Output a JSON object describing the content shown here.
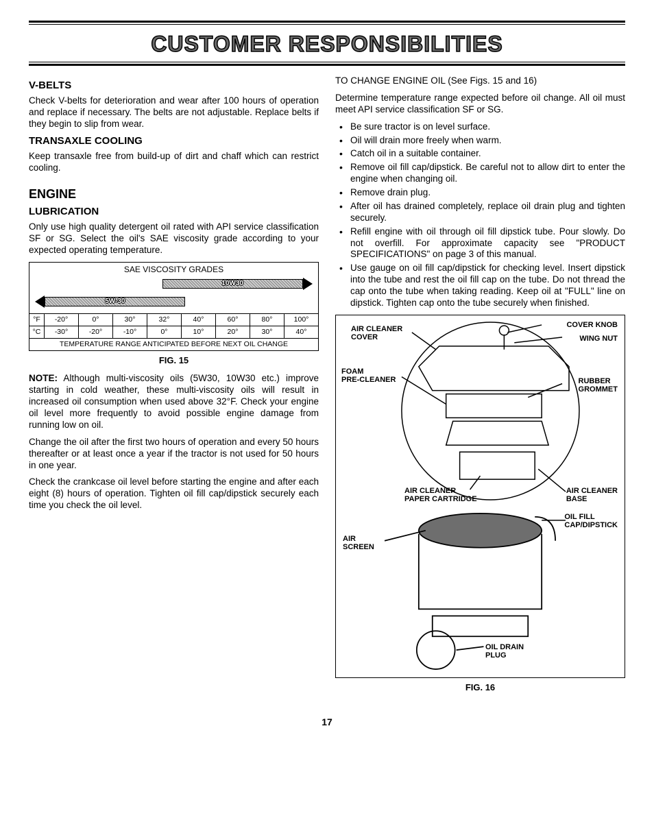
{
  "title": "CUSTOMER RESPONSIBILITIES",
  "left": {
    "vbelts": {
      "heading": "V-BELTS",
      "text": "Check V-belts for deterioration and wear after 100 hours of operation and replace if necessary. The belts are not adjustable. Replace belts if they begin to slip from wear."
    },
    "transaxle": {
      "heading": "TRANSAXLE COOLING",
      "text": "Keep transaxle free from build-up of dirt and chaff which can restrict cooling."
    },
    "engine": {
      "heading": "ENGINE"
    },
    "lubrication": {
      "heading": "LUBRICATION",
      "text": "Only use high quality detergent oil rated with API service classification SF or SG. Select the oil's SAE viscosity grade according to your expected operating temperature."
    },
    "sae": {
      "title": "SAE VISCOSITY GRADES",
      "band_top": {
        "label": "10W30",
        "left_pct": 46,
        "right_pct": 2
      },
      "band_bot": {
        "label": "5W-30",
        "left_pct": 2,
        "right_pct": 46
      },
      "f": {
        "unit": "°F",
        "ticks": [
          "-20°",
          "0°",
          "30°",
          "32°",
          "40°",
          "60°",
          "80°",
          "100°"
        ]
      },
      "c": {
        "unit": "°C",
        "ticks": [
          "-30°",
          "-20°",
          "-10°",
          "0°",
          "10°",
          "20°",
          "30°",
          "40°"
        ]
      },
      "footer": "TEMPERATURE RANGE ANTICIPATED BEFORE NEXT OIL CHANGE",
      "caption": "FIG. 15"
    },
    "note": {
      "lead": "NOTE:",
      "text": " Although multi-viscosity oils (5W30, 10W30 etc.) improve starting in cold weather, these multi-viscosity oils will result in increased oil consumption when used above 32°F. Check your engine oil level more frequently to avoid possible engine damage from running low on oil."
    },
    "p_change": "Change the oil after the first two hours of operation and every 50 hours thereafter or at least once a year if the tractor is not used for 50 hours in one year.",
    "p_check": "Check the crankcase oil level before starting the engine and after each eight (8) hours of operation. Tighten oil fill cap/dipstick securely each time you check the oil level."
  },
  "right": {
    "heading": "TO CHANGE ENGINE OIL (See Figs. 15 and 16)",
    "intro": "Determine temperature range expected before oil change. All oil must meet API service classification SF or SG.",
    "bullets": [
      "Be sure tractor is on level surface.",
      "Oil will drain more freely when warm.",
      "Catch oil in a suitable container.",
      "Remove oil fill cap/dipstick. Be careful not to allow dirt to enter the engine when changing oil.",
      "Remove drain plug.",
      "After oil has drained completely, replace oil drain plug and tighten securely.",
      "Refill engine with oil through oil fill dipstick tube. Pour slowly. Do not overfill. For approximate capacity see \"PRODUCT SPECIFICATIONS\" on page 3 of this manual.",
      "Use gauge on oil fill cap/dipstick for checking level. Insert dipstick into the tube and rest the oil fill cap on the tube. Do not thread the cap onto the tube when taking reading. Keep oil at \"FULL\" line on dipstick. Tighten cap onto the tube securely when finished."
    ],
    "fig16": {
      "labels": {
        "cover_knob": "COVER KNOB",
        "wing_nut": "WING NUT",
        "air_cleaner_cover": "AIR CLEANER\nCOVER",
        "foam": "FOAM\nPRE-CLEANER",
        "rubber_grommet": "RUBBER\nGROMMET",
        "paper_cartridge": "AIR CLEANER\nPAPER CARTRIDGE",
        "air_cleaner_base": "AIR CLEANER\nBASE",
        "oil_fill": "OIL FILL\nCAP/DIPSTICK",
        "air_screen": "AIR\nSCREEN",
        "oil_drain": "OIL DRAIN\nPLUG"
      },
      "caption": "FIG. 16"
    }
  },
  "page_number": "17"
}
